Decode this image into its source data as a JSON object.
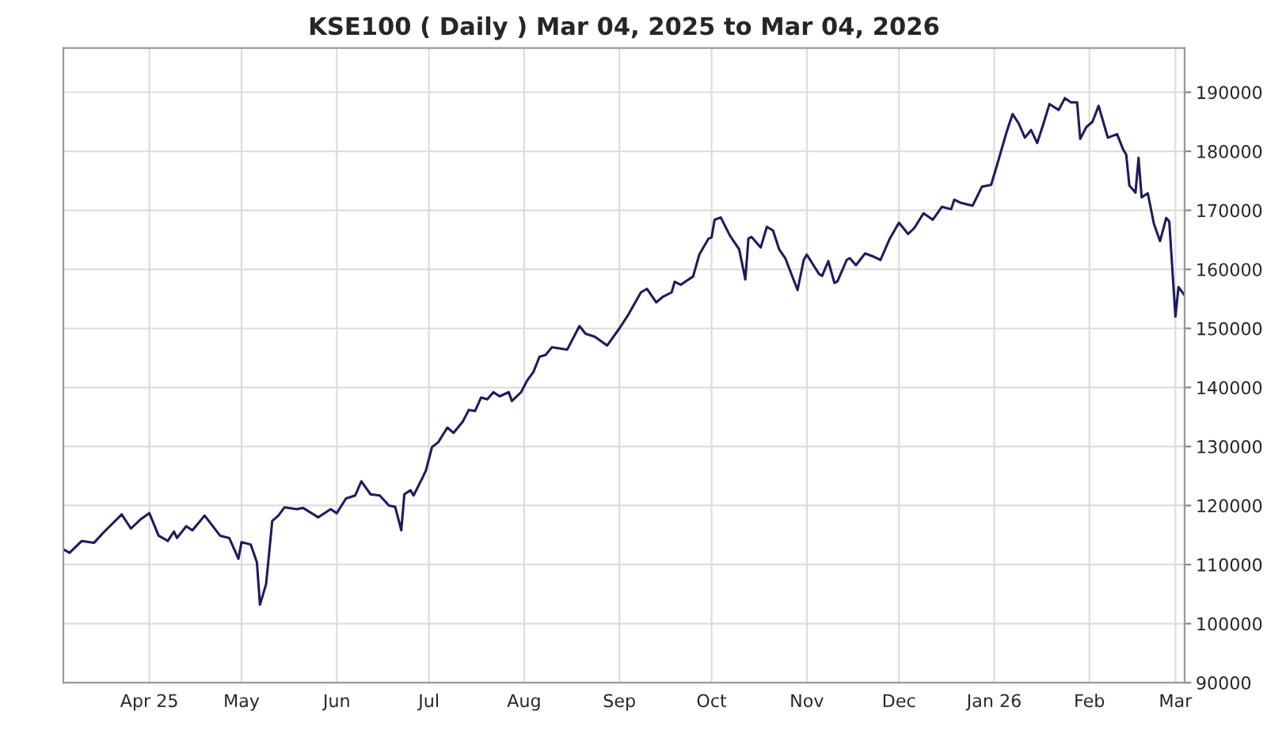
{
  "chart_data": {
    "type": "line",
    "title": "KSE100 ( Daily ) Mar 04, 2025 to Mar 04, 2026",
    "x": [
      "2025-03-04",
      "2025-03-06",
      "2025-03-10",
      "2025-03-14",
      "2025-03-17",
      "2025-03-23",
      "2025-03-26",
      "2025-03-29",
      "2025-04-01",
      "2025-04-04",
      "2025-04-07",
      "2025-04-09",
      "2025-04-10",
      "2025-04-13",
      "2025-04-15",
      "2025-04-19",
      "2025-04-24",
      "2025-04-27",
      "2025-04-30",
      "2025-05-01",
      "2025-05-04",
      "2025-05-06",
      "2025-05-07",
      "2025-05-09",
      "2025-05-11",
      "2025-05-13",
      "2025-05-15",
      "2025-05-19",
      "2025-05-21",
      "2025-05-26",
      "2025-05-30",
      "2025-06-01",
      "2025-06-04",
      "2025-06-07",
      "2025-06-09",
      "2025-06-12",
      "2025-06-15",
      "2025-06-18",
      "2025-06-20",
      "2025-06-22",
      "2025-06-23",
      "2025-06-25",
      "2025-06-26",
      "2025-06-29",
      "2025-06-30",
      "2025-07-02",
      "2025-07-04",
      "2025-07-07",
      "2025-07-09",
      "2025-07-12",
      "2025-07-14",
      "2025-07-16",
      "2025-07-18",
      "2025-07-20",
      "2025-07-22",
      "2025-07-24",
      "2025-07-27",
      "2025-07-28",
      "2025-07-31",
      "2025-08-02",
      "2025-08-04",
      "2025-08-06",
      "2025-08-08",
      "2025-08-10",
      "2025-08-15",
      "2025-08-19",
      "2025-08-21",
      "2025-08-24",
      "2025-08-28",
      "2025-09-01",
      "2025-09-04",
      "2025-09-08",
      "2025-09-10",
      "2025-09-13",
      "2025-09-15",
      "2025-09-18",
      "2025-09-19",
      "2025-09-21",
      "2025-09-25",
      "2025-09-27",
      "2025-09-30",
      "2025-10-01",
      "2025-10-02",
      "2025-10-04",
      "2025-10-07",
      "2025-10-10",
      "2025-10-12",
      "2025-10-13",
      "2025-10-14",
      "2025-10-17",
      "2025-10-19",
      "2025-10-21",
      "2025-10-23",
      "2025-10-25",
      "2025-10-29",
      "2025-10-31",
      "2025-11-01",
      "2025-11-05",
      "2025-11-06",
      "2025-11-08",
      "2025-11-10",
      "2025-11-11",
      "2025-11-14",
      "2025-11-15",
      "2025-11-17",
      "2025-11-20",
      "2025-11-23",
      "2025-11-25",
      "2025-11-28",
      "2025-12-01",
      "2025-12-04",
      "2025-12-06",
      "2025-12-09",
      "2025-12-12",
      "2025-12-15",
      "2025-12-18",
      "2025-12-19",
      "2025-12-21",
      "2025-12-25",
      "2025-12-28",
      "2025-12-31",
      "2026-01-02",
      "2026-01-05",
      "2026-01-07",
      "2026-01-09",
      "2026-01-11",
      "2026-01-13",
      "2026-01-15",
      "2026-01-17",
      "2026-01-19",
      "2026-01-22",
      "2026-01-24",
      "2026-01-26",
      "2026-01-28",
      "2026-01-29",
      "2026-01-31",
      "2026-02-02",
      "2026-02-04",
      "2026-02-06",
      "2026-02-07",
      "2026-02-10",
      "2026-02-12",
      "2026-02-13",
      "2026-02-14",
      "2026-02-16",
      "2026-02-17",
      "2026-02-18",
      "2026-02-20",
      "2026-02-22",
      "2026-02-24",
      "2026-02-26",
      "2026-02-27",
      "2026-03-01",
      "2026-03-02",
      "2026-03-04"
    ],
    "series": [
      {
        "color": "#1c1c5c",
        "values": [
          112600,
          112000,
          114000,
          113700,
          115400,
          118500,
          116100,
          117600,
          118700,
          114900,
          114000,
          115600,
          114500,
          116500,
          115800,
          118300,
          114900,
          114500,
          111000,
          113800,
          113400,
          110400,
          103200,
          106700,
          117400,
          118300,
          119700,
          119400,
          119600,
          118000,
          119400,
          118700,
          121200,
          121700,
          124100,
          121900,
          121700,
          120000,
          119800,
          115800,
          121900,
          122600,
          121700,
          124800,
          125900,
          129900,
          130700,
          133200,
          132300,
          134200,
          136200,
          136000,
          138300,
          138000,
          139200,
          138500,
          139200,
          137700,
          139200,
          141200,
          142600,
          145200,
          145500,
          146800,
          146400,
          150400,
          149100,
          148600,
          147100,
          150000,
          152400,
          156100,
          156700,
          154400,
          155300,
          156100,
          157900,
          157400,
          158800,
          162500,
          165200,
          165400,
          168400,
          168800,
          165700,
          163400,
          158300,
          165200,
          165500,
          163700,
          167200,
          166600,
          163400,
          161900,
          156500,
          161600,
          162500,
          159200,
          158900,
          161400,
          157700,
          158000,
          161600,
          161900,
          160700,
          162700,
          162100,
          161600,
          165200,
          167900,
          166000,
          167000,
          169500,
          168400,
          170600,
          170200,
          171800,
          171300,
          170800,
          174000,
          174300,
          177800,
          183200,
          186300,
          184700,
          182300,
          183600,
          181400,
          184600,
          188000,
          187000,
          189000,
          188300,
          188300,
          182100,
          184100,
          185000,
          187700,
          184100,
          182300,
          182900,
          180300,
          179400,
          174200,
          173000,
          178900,
          172200,
          172900,
          167700,
          164800,
          168700,
          168100,
          152000,
          157000,
          155600
        ]
      }
    ],
    "xlim": [
      "2025-03-04",
      "2026-03-04"
    ],
    "xticks": [
      {
        "value": "2025-04-01",
        "label": "Apr 25"
      },
      {
        "value": "2025-05-01",
        "label": "May"
      },
      {
        "value": "2025-06-01",
        "label": "Jun"
      },
      {
        "value": "2025-07-01",
        "label": "Jul"
      },
      {
        "value": "2025-08-01",
        "label": "Aug"
      },
      {
        "value": "2025-09-01",
        "label": "Sep"
      },
      {
        "value": "2025-10-01",
        "label": "Oct"
      },
      {
        "value": "2025-11-01",
        "label": "Nov"
      },
      {
        "value": "2025-12-01",
        "label": "Dec"
      },
      {
        "value": "2026-01-01",
        "label": "Jan 26"
      },
      {
        "value": "2026-02-01",
        "label": "Feb"
      },
      {
        "value": "2026-03-01",
        "label": "Mar"
      }
    ],
    "ylim": [
      90000,
      197500
    ],
    "yticks": [
      90000,
      100000,
      110000,
      120000,
      130000,
      140000,
      150000,
      160000,
      170000,
      180000,
      190000
    ],
    "grid": true,
    "line_style": "solid"
  }
}
